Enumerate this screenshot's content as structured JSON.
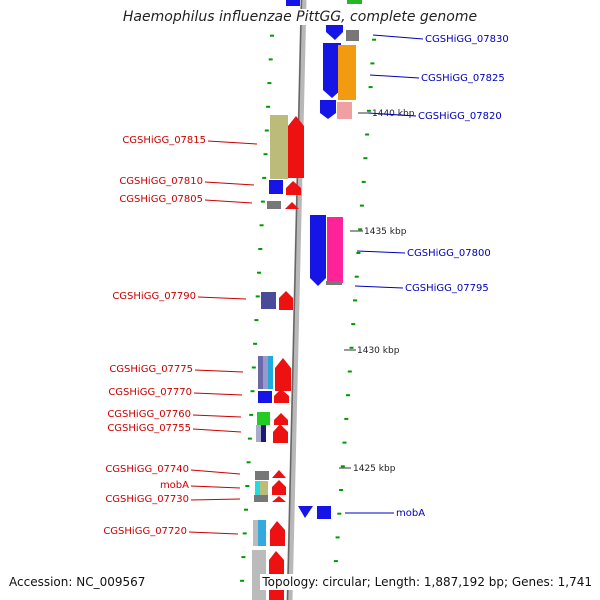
{
  "title": "Haemophilus influenzae PittGG, complete genome",
  "accession": "Accession: NC_009567",
  "topology": "Topology: circular; Length: 1,887,192 bp; Genes: 1,741",
  "colors": {
    "left_label": "#cc0000",
    "right_label": "#0000bb",
    "tick": "#009900",
    "backbone": "#888888"
  },
  "scale_labels": [
    {
      "text": "1440 kbp",
      "kbp": 1440
    },
    {
      "text": "1435 kbp",
      "kbp": 1435
    },
    {
      "text": "1430 kbp",
      "kbp": 1430
    },
    {
      "text": "1425 kbp",
      "kbp": 1425
    }
  ],
  "left_features": [
    {
      "text": "CGSHiGG_07815"
    },
    {
      "text": "CGSHiGG_07810"
    },
    {
      "text": "CGSHiGG_07805"
    },
    {
      "text": "CGSHiGG_07790"
    },
    {
      "text": "CGSHiGG_07775"
    },
    {
      "text": "CGSHiGG_07770"
    },
    {
      "text": "CGSHiGG_07760"
    },
    {
      "text": "CGSHiGG_07755"
    },
    {
      "text": "CGSHiGG_07740"
    },
    {
      "text": "mobA"
    },
    {
      "text": "CGSHiGG_07730"
    },
    {
      "text": "CGSHiGG_07720"
    }
  ],
  "right_features": [
    {
      "text": "CGSHiGG_07830"
    },
    {
      "text": "CGSHiGG_07825"
    },
    {
      "text": "CGSHiGG_07820"
    },
    {
      "text": "CGSHiGG_07800"
    },
    {
      "text": "CGSHiGG_07795"
    },
    {
      "text": "mobA"
    }
  ]
}
